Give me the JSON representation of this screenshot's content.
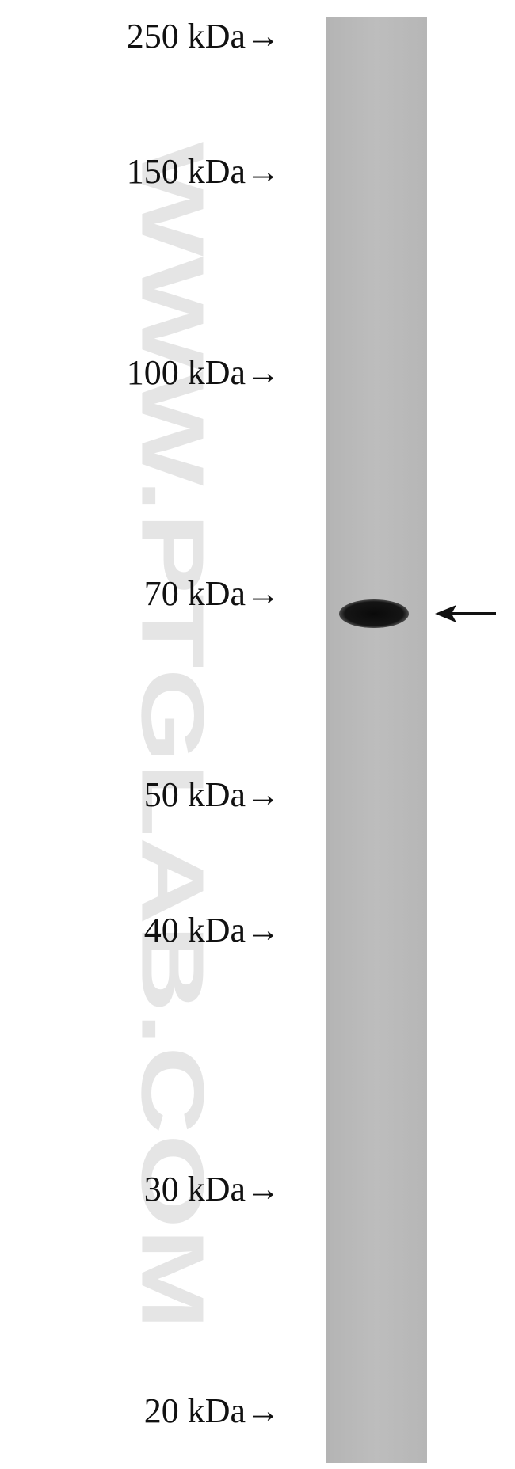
{
  "markers": [
    "250 kDa→",
    "150 kDa→",
    "100 kDa→",
    "70 kDa→",
    "50 kDa→",
    "40 kDa→",
    "30 kDa→",
    "20 kDa→"
  ],
  "watermark": "WWW.PTGLAB.COM"
}
